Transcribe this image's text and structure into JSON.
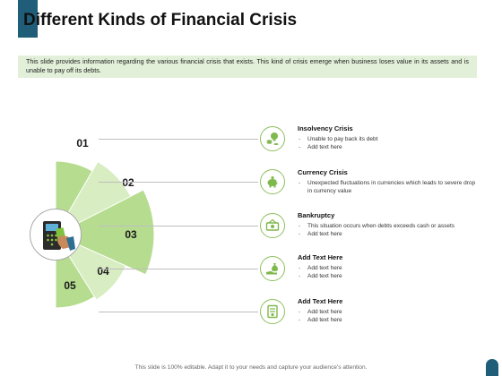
{
  "header": {
    "title": "Different Kinds of Financial Crisis"
  },
  "intro": {
    "text": "This slide provides information regarding the various financial crisis that exists. This kind of crisis emerge when business loses value in its assets and is unable to pay off its debts."
  },
  "segments": [
    {
      "number": "01",
      "color": "#b6dc8f"
    },
    {
      "number": "02",
      "color": "#d8edc2"
    },
    {
      "number": "03",
      "color": "#b6dc8f"
    },
    {
      "number": "04",
      "color": "#d8edc2"
    },
    {
      "number": "05",
      "color": "#b6dc8f"
    }
  ],
  "center_icon": "card-payment-terminal-icon",
  "items": [
    {
      "icon": "coins-lightbulb-icon",
      "title": "Insolvency Crisis",
      "bullets": [
        "Unable to pay back its debt",
        "Add text here"
      ]
    },
    {
      "icon": "piggy-bank-icon",
      "title": "Currency Crisis",
      "bullets": [
        "Unexpected fluctuations in currencies which leads to severe drop in currency value"
      ]
    },
    {
      "icon": "cash-bills-icon",
      "title": "Bankruptcy",
      "bullets": [
        "This situation occurs when debts exceeds cash or assets",
        "Add text here"
      ]
    },
    {
      "icon": "hand-money-bag-icon",
      "title": "Add Text Here",
      "bullets": [
        "Add text here",
        "Add text here"
      ]
    },
    {
      "icon": "document-dollar-icon",
      "title": "Add Text Here",
      "bullets": [
        "Add text here",
        "Add text here"
      ]
    }
  ],
  "footer": {
    "text": "This slide is 100% editable. Adapt it to your needs and capture your audience's attention."
  },
  "colors": {
    "accent": "#1f5d78",
    "segment_dark": "#b6dc8f",
    "segment_light": "#d8edc2",
    "icon_border": "#8ebf5f",
    "intro_bg": "#e2f0d9"
  }
}
